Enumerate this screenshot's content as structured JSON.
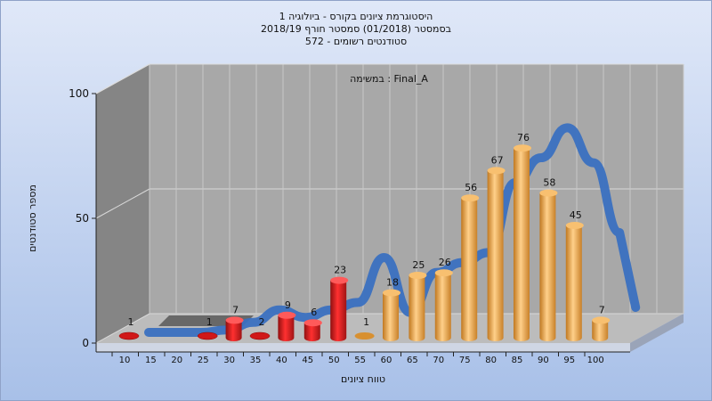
{
  "chart_data": {
    "type": "bar",
    "title_lines": [
      "היסטוגרמת ציונים בקורס - ביולוגיה 1",
      "בסמסטר (01/2018) סמסטר חורף 2018/19",
      "572 - סטודנטים רשומים"
    ],
    "subtitle": "במשימה : Final_A",
    "xlabel": "טווח ציונים",
    "ylabel": "מספר סטודנטים",
    "ylim": [
      0,
      100
    ],
    "y_ticks": [
      "0",
      "50",
      "100"
    ],
    "x_ticks": [
      "10",
      "15",
      "20",
      "25",
      "30",
      "35",
      "40",
      "45",
      "50",
      "55",
      "60",
      "65",
      "70",
      "75",
      "80",
      "85",
      "90",
      "95",
      "100"
    ],
    "categories": [
      "10",
      "15",
      "20",
      "25",
      "30",
      "35",
      "40",
      "45",
      "50",
      "55",
      "60",
      "65",
      "70",
      "75",
      "80",
      "85",
      "90",
      "95",
      "100"
    ],
    "values": [
      1,
      null,
      null,
      1,
      7,
      2,
      9,
      6,
      23,
      1,
      18,
      25,
      26,
      56,
      67,
      76,
      58,
      45,
      7
    ],
    "data_labels": [
      "1",
      "",
      "",
      "1",
      "7",
      "2",
      "9",
      "6",
      "23",
      "1",
      "18",
      "25",
      "26",
      "56",
      "67",
      "76",
      "58",
      "45",
      "7"
    ],
    "trend": [
      0,
      0,
      0,
      1,
      4,
      9,
      6,
      9,
      12,
      30,
      8,
      24,
      28,
      32,
      60,
      70,
      82,
      68,
      40
    ],
    "fail_threshold": 55,
    "grid": true,
    "colors": {
      "fail": "#e02020",
      "pass": "#e8a040",
      "trend": "#3a70c0",
      "background_top": "#e0e8f8",
      "background_bottom": "#a8c0e8",
      "wall": "#a8a8a8",
      "side_wall": "#858585",
      "floor": "#bcbcbc"
    }
  }
}
